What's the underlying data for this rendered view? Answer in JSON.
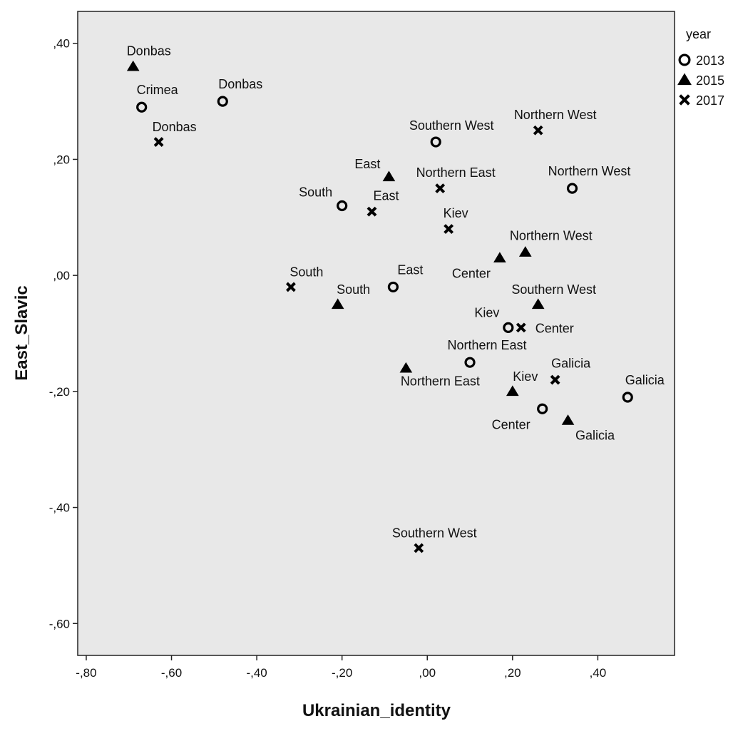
{
  "chart_data": {
    "type": "scatter",
    "xlabel": "Ukrainian_identity",
    "ylabel": "East_Slavic",
    "xlim": [
      -0.82,
      0.58
    ],
    "ylim": [
      -0.655,
      0.455
    ],
    "x_ticks": [
      -0.8,
      -0.6,
      -0.4,
      -0.2,
      0.0,
      0.2,
      0.4
    ],
    "x_tick_labels": [
      "-,80",
      "-,60",
      "-,40",
      "-,20",
      ",00",
      ",20",
      ",40"
    ],
    "y_ticks": [
      0.4,
      0.2,
      0.0,
      -0.2,
      -0.4,
      -0.6
    ],
    "y_tick_labels": [
      ",40",
      ",20",
      ",00",
      "-,20",
      "-,40",
      "-,60"
    ],
    "grid": false,
    "legend": {
      "title": "year",
      "placement": "right",
      "entries": [
        {
          "label": "2013",
          "marker": "circle"
        },
        {
          "label": "2015",
          "marker": "triangle"
        },
        {
          "label": "2017",
          "marker": "cross"
        }
      ]
    },
    "series": [
      {
        "name": "2013",
        "marker": "circle",
        "points": [
          {
            "label": "Crimea",
            "x": -0.67,
            "y": 0.29
          },
          {
            "label": "Donbas",
            "x": -0.48,
            "y": 0.3
          },
          {
            "label": "Southern West",
            "x": 0.02,
            "y": 0.23
          },
          {
            "label": "Northern West",
            "x": 0.34,
            "y": 0.15
          },
          {
            "label": "South",
            "x": -0.2,
            "y": 0.12
          },
          {
            "label": "East",
            "x": -0.08,
            "y": -0.02
          },
          {
            "label": "Kiev",
            "x": 0.19,
            "y": -0.09
          },
          {
            "label": "Northern East",
            "x": 0.1,
            "y": -0.15
          },
          {
            "label": "Galicia",
            "x": 0.47,
            "y": -0.21
          },
          {
            "label": "Center",
            "x": 0.27,
            "y": -0.23
          }
        ]
      },
      {
        "name": "2015",
        "marker": "triangle",
        "points": [
          {
            "label": "Donbas",
            "x": -0.69,
            "y": 0.36
          },
          {
            "label": "East",
            "x": -0.09,
            "y": 0.17
          },
          {
            "label": "Center",
            "x": 0.17,
            "y": 0.03
          },
          {
            "label": "Northern West",
            "x": 0.23,
            "y": 0.04
          },
          {
            "label": "South",
            "x": -0.21,
            "y": -0.05
          },
          {
            "label": "Southern West",
            "x": 0.26,
            "y": -0.05
          },
          {
            "label": "Northern East",
            "x": -0.05,
            "y": -0.16
          },
          {
            "label": "Kiev",
            "x": 0.2,
            "y": -0.2
          },
          {
            "label": "Galicia",
            "x": 0.33,
            "y": -0.25
          }
        ]
      },
      {
        "name": "2017",
        "marker": "cross",
        "points": [
          {
            "label": "Donbas",
            "x": -0.63,
            "y": 0.23
          },
          {
            "label": "Northern West",
            "x": 0.26,
            "y": 0.25
          },
          {
            "label": "Northern East",
            "x": 0.03,
            "y": 0.15
          },
          {
            "label": "East",
            "x": -0.13,
            "y": 0.11
          },
          {
            "label": "Kiev",
            "x": 0.05,
            "y": 0.08
          },
          {
            "label": "South",
            "x": -0.32,
            "y": -0.02
          },
          {
            "label": "Center",
            "x": 0.22,
            "y": -0.09
          },
          {
            "label": "Galicia",
            "x": 0.3,
            "y": -0.18
          },
          {
            "label": "Southern West",
            "x": -0.02,
            "y": -0.47
          }
        ]
      }
    ]
  }
}
